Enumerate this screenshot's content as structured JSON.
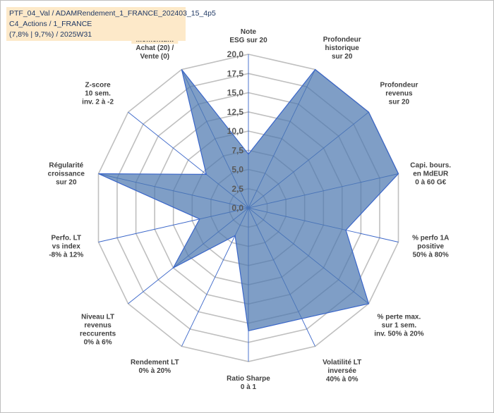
{
  "title_lines": [
    "PTF_04_Val / ADAMRendement_1_FRANCE_202403_15_4p5",
    "C4_Actions / 1_FRANCE",
    "(7,8% | 9,7%) / 2025W31"
  ],
  "colors": {
    "fill": "#4e78b0",
    "stroke": "#3a66c9",
    "grid": "#bfbfbf",
    "title_bg": "#fde9c9",
    "highlight_label_bg": "#fde9c9"
  },
  "chart_data": {
    "type": "radar",
    "r_range": [
      0,
      20
    ],
    "r_ticks": [
      "0,0",
      "2,5",
      "5,0",
      "7,5",
      "10,0",
      "12,5",
      "15,0",
      "17,5",
      "20,0"
    ],
    "grid": true,
    "categories": [
      [
        "Note",
        "ESG sur 20"
      ],
      [
        "Profondeur",
        "historique",
        "sur 20"
      ],
      [
        "Profondeur",
        "revenus",
        "sur 20"
      ],
      [
        "Capi. bours.",
        "en MdEUR",
        "0 à 60 G€"
      ],
      [
        "% perfo 1A",
        "positive",
        "50% à 80%"
      ],
      [
        "% perte max.",
        "sur 1 sem.",
        "inv. 50% à 20%"
      ],
      [
        "Volatilité LT",
        "inversée",
        "40% à 0%"
      ],
      [
        "Ratio Sharpe",
        "0 à 1"
      ],
      [
        "Rendement LT",
        "0% à 20%"
      ],
      [
        "Niveau LT",
        "revenus",
        "reccurents",
        "0% à 6%"
      ],
      [
        "Perfo. LT",
        "vs index",
        "-8% à 12%"
      ],
      [
        "Régularité",
        "croissance",
        "sur 20"
      ],
      [
        "Z-score",
        "10 sem.",
        "inv. 2 à -2"
      ],
      [
        "Momentum",
        "Achat (20) /",
        "Vente (0)"
      ]
    ],
    "highlighted_category": 13,
    "series": [
      {
        "values": [
          7.0,
          20.0,
          20.0,
          20.0,
          13.0,
          20.0,
          16.0,
          16.0,
          4.0,
          12.5,
          6.5,
          20.0,
          7.0,
          20.0
        ]
      }
    ]
  }
}
